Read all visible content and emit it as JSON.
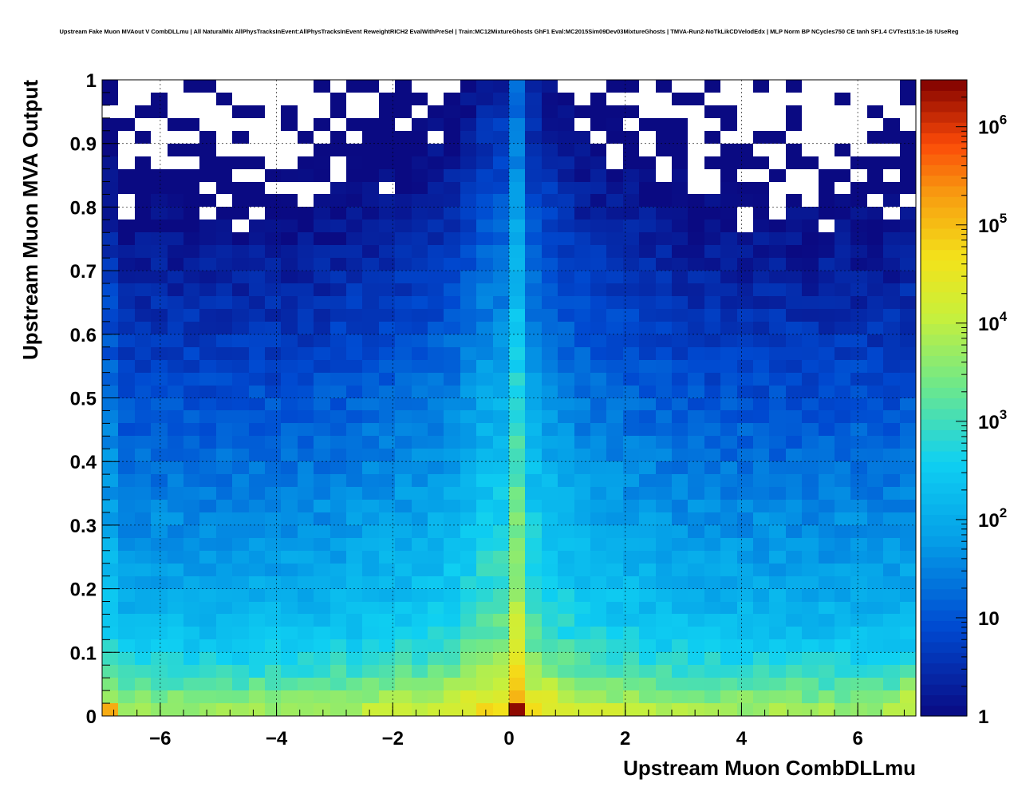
{
  "chart_data": {
    "type": "heatmap",
    "title": "Upstream Fake Muon MVAout V CombDLLmu | All NaturalMix AllPhysTracksInEvent:AllPhysTracksInEvent ReweightRICH2 EvalWithPreSel | Train:MC12MixtureGhosts GhF1 Eval:MC2015Sim09Dev03MixtureGhosts | TMVA-Run2-NoTkLikCDVelodEdx | MLP Norm BP NCycles750 CE tanh SF1.4 CVTest15:1e-16 !UseReg",
    "xlabel": "Upstream Muon CombDLLmu",
    "ylabel": "Upstream Muon MVA Output",
    "xlim": [
      -7,
      7
    ],
    "ylim": [
      0,
      1
    ],
    "x_ticks": [
      -6,
      -4,
      -2,
      0,
      2,
      4,
      6
    ],
    "x_tick_labels": [
      "−6",
      "−4",
      "−2",
      "0",
      "2",
      "4",
      "6"
    ],
    "y_ticks": [
      0,
      0.1,
      0.2,
      0.3,
      0.4,
      0.5,
      0.6,
      0.7,
      0.8,
      0.9,
      1
    ],
    "y_tick_labels": [
      "0",
      "0.1",
      "0.2",
      "0.3",
      "0.4",
      "0.5",
      "0.6",
      "0.7",
      "0.8",
      "0.9",
      "1"
    ],
    "bins": {
      "nx": 50,
      "ny": 50
    },
    "z_scale": "log",
    "z_range": [
      1,
      3000000
    ],
    "z_ticks": [
      1,
      10,
      100,
      1000,
      10000,
      100000,
      1000000
    ],
    "z_tick_labels": [
      {
        "base": "1",
        "exp": ""
      },
      {
        "base": "10",
        "exp": ""
      },
      {
        "base": "10",
        "exp": "2"
      },
      {
        "base": "10",
        "exp": "3"
      },
      {
        "base": "10",
        "exp": "4"
      },
      {
        "base": "10",
        "exp": "5"
      },
      {
        "base": "10",
        "exp": "6"
      }
    ],
    "grid": true,
    "palette": "rainbow (dark blue to dark red)",
    "notable_values": [
      {
        "x": 0.14,
        "y": 0.01,
        "z": 2500000
      },
      {
        "x": -6.86,
        "y": 0.01,
        "z": 150000
      },
      {
        "x": 0.14,
        "y": 0.11,
        "z": 20000
      },
      {
        "x": 3.78,
        "y": 0.93,
        "z": 1
      },
      {
        "x": 6.86,
        "y": 0.91,
        "z": 1
      }
    ]
  }
}
